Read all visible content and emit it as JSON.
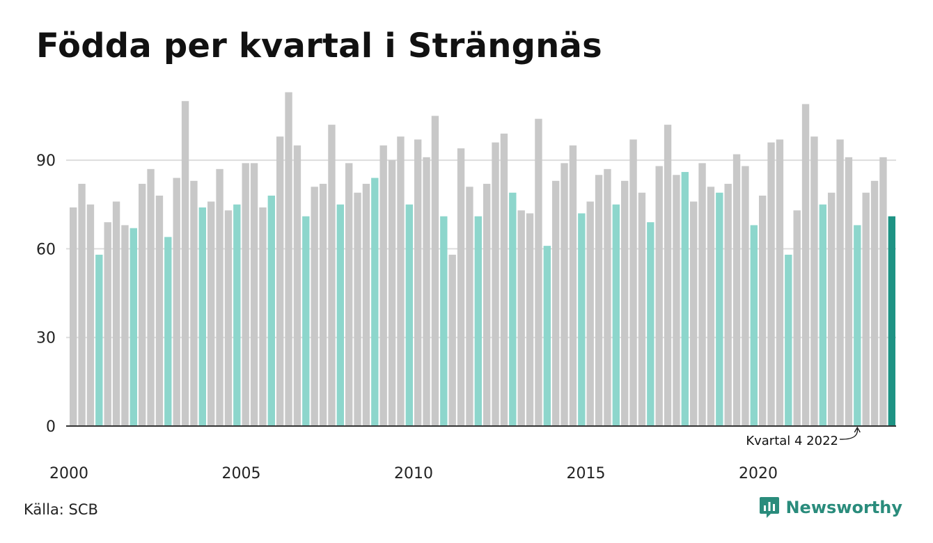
{
  "title": "Födda per kvartal i Strängnäs",
  "source": "Källa: SCB",
  "brand": {
    "name": "Newsworthy",
    "icon": "newsworthy-logo-icon"
  },
  "colors": {
    "gray": "#c8c8c8",
    "q4": "#8dd6cc",
    "highlight": "#1e9384",
    "grid": "#dddddd",
    "axis": "#333333",
    "brand": "#2a8c7c"
  },
  "chart_data": {
    "type": "bar",
    "title": "Födda per kvartal i Strängnäs",
    "xlabel": "",
    "ylabel": "",
    "ylim": [
      0,
      115
    ],
    "yticks": [
      0,
      30,
      60,
      90
    ],
    "grid": true,
    "x_tick_labels": [
      "2000",
      "2005",
      "2010",
      "2015",
      "2020"
    ],
    "annotation": {
      "text": "Kvartal 4 2022",
      "target_index": 91
    },
    "highlight_index": 95,
    "series": [
      {
        "values": [
          74,
          82,
          75,
          58,
          69,
          76,
          68,
          67,
          82,
          87,
          78,
          64,
          84,
          110,
          83,
          74,
          76,
          87,
          73,
          75,
          89,
          89,
          74,
          78,
          98,
          113,
          95,
          71,
          81,
          82,
          102,
          75,
          89,
          79,
          82,
          84,
          95,
          90,
          98,
          75,
          97,
          91,
          105,
          71,
          58,
          94,
          81,
          71,
          82,
          96,
          99,
          79,
          73,
          72,
          104,
          61,
          83,
          89,
          95,
          72,
          76,
          85,
          87,
          75,
          83,
          97,
          79,
          69,
          88,
          102,
          85,
          86,
          76,
          89,
          81,
          79,
          82,
          92,
          88,
          68,
          78,
          96,
          97,
          58,
          73,
          109,
          98,
          75,
          79,
          97,
          91,
          68,
          79,
          83,
          91,
          71
        ]
      }
    ]
  }
}
